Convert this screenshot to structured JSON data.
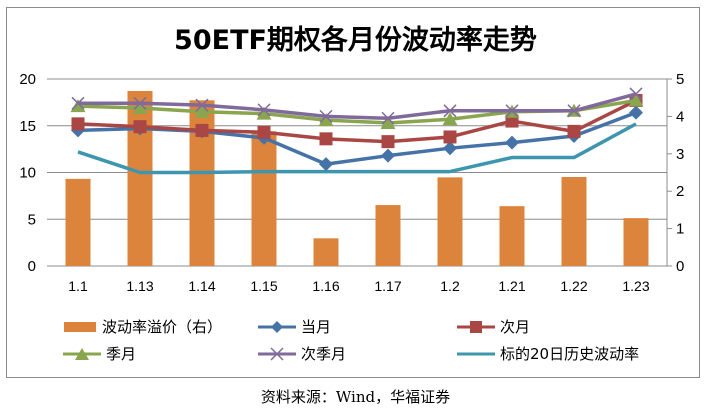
{
  "chart_data": {
    "type": "bar+line",
    "title": "50ETF期权各月份波动率走势",
    "categories": [
      "1.1",
      "1.13",
      "1.14",
      "1.15",
      "1.16",
      "1.17",
      "1.2",
      "1.21",
      "1.22",
      "1.23"
    ],
    "y_left": {
      "range": [
        0,
        20
      ],
      "ticks": [
        "0",
        "5",
        "10",
        "15",
        "20"
      ]
    },
    "y_right": {
      "range": [
        0,
        5
      ],
      "ticks": [
        "0",
        "1",
        "2",
        "3",
        "4",
        "5"
      ]
    },
    "grid": true,
    "legend_position": "bottom",
    "series": [
      {
        "name": "波动率溢价（右）",
        "kind": "bar",
        "axis": "right",
        "color": "#dd843c",
        "values": [
          2.33,
          4.68,
          4.43,
          3.6,
          0.74,
          1.63,
          2.37,
          1.6,
          2.38,
          1.28
        ]
      },
      {
        "name": "当月",
        "kind": "line",
        "axis": "left",
        "marker": "diamond",
        "color": "#4572a7",
        "values": [
          14.5,
          14.7,
          14.4,
          13.7,
          10.9,
          11.8,
          12.6,
          13.2,
          13.9,
          16.4
        ]
      },
      {
        "name": "次月",
        "kind": "line",
        "axis": "left",
        "marker": "square",
        "color": "#aa4643",
        "values": [
          15.2,
          14.9,
          14.5,
          14.3,
          13.6,
          13.3,
          13.8,
          15.5,
          14.4,
          17.7
        ]
      },
      {
        "name": "季月",
        "kind": "line",
        "axis": "left",
        "marker": "triangle",
        "color": "#89a54e",
        "values": [
          17.1,
          16.9,
          16.5,
          16.3,
          15.6,
          15.3,
          15.7,
          16.5,
          16.6,
          17.7
        ]
      },
      {
        "name": "次季月",
        "kind": "line",
        "axis": "left",
        "marker": "x",
        "color": "#80699b",
        "values": [
          17.4,
          17.4,
          17.2,
          16.7,
          16.0,
          15.8,
          16.6,
          16.6,
          16.6,
          18.4
        ]
      },
      {
        "name": "标的20日历史波动率",
        "kind": "line",
        "axis": "left",
        "marker": "none",
        "color": "#3d96ae",
        "values": [
          12.2,
          10.0,
          10.0,
          10.1,
          10.1,
          10.1,
          10.1,
          11.6,
          11.6,
          15.2
        ]
      }
    ],
    "source": "资料来源：Wind，华福证券"
  }
}
